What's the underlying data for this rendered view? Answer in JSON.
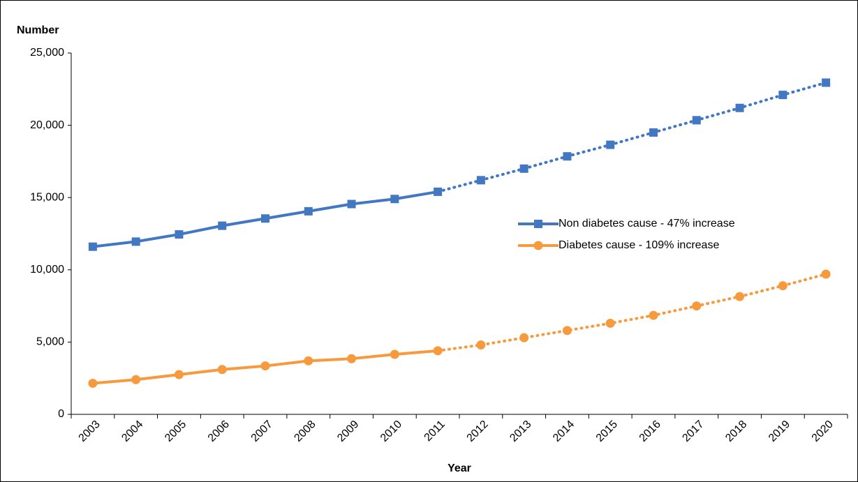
{
  "chart_data": {
    "type": "line",
    "y_label": "Number",
    "x_label": "Year",
    "categories": [
      "2003",
      "2004",
      "2005",
      "2006",
      "2007",
      "2008",
      "2009",
      "2010",
      "2011",
      "2012",
      "2013",
      "2014",
      "2015",
      "2016",
      "2017",
      "2018",
      "2019",
      "2020"
    ],
    "projected_from": "2011",
    "series": [
      {
        "name": "Non diabetes cause - 47% increase",
        "color": "#4277c2",
        "marker": "square",
        "values": [
          11600,
          11950,
          12450,
          13050,
          13550,
          14050,
          14550,
          14900,
          15400,
          16200,
          17000,
          17850,
          18650,
          19500,
          20350,
          21200,
          22100,
          22950
        ]
      },
      {
        "name": "Diabetes cause - 109% increase",
        "color": "#f79a3d",
        "marker": "circle",
        "values": [
          2150,
          2400,
          2750,
          3100,
          3350,
          3700,
          3850,
          4150,
          4400,
          4800,
          5300,
          5800,
          6300,
          6850,
          7500,
          8150,
          8900,
          9700
        ]
      }
    ],
    "ylim": [
      0,
      25000
    ],
    "yticks": [
      0,
      {
        "value": 5000,
        "label": "5,000"
      },
      {
        "value": 10000,
        "label": "10,000"
      },
      {
        "value": 15000,
        "label": "15,000"
      },
      {
        "value": 20000,
        "label": "20,000"
      },
      {
        "value": 25000,
        "label": "25,000"
      }
    ],
    "grid": false,
    "legend": "center-right"
  }
}
